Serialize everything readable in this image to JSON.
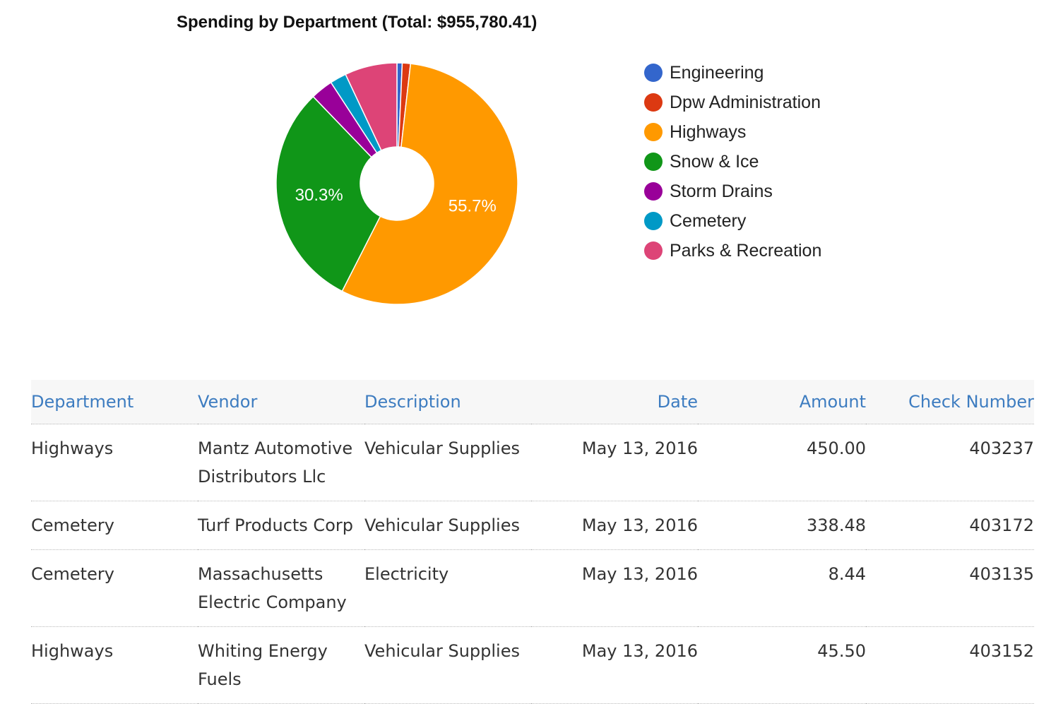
{
  "chart_data": {
    "type": "pie",
    "donut": true,
    "title": "Spending by Department (Total: $955,780.41)",
    "legend_position": "right",
    "slices": [
      {
        "label": "Engineering",
        "percent": 0.7,
        "color": "#3366cc",
        "data_label": ""
      },
      {
        "label": "Dpw Administration",
        "percent": 1.1,
        "color": "#dc3912",
        "data_label": ""
      },
      {
        "label": "Highways",
        "percent": 55.7,
        "color": "#ff9900",
        "data_label": "55.7%"
      },
      {
        "label": "Snow & Ice",
        "percent": 30.3,
        "color": "#109618",
        "data_label": "30.3%"
      },
      {
        "label": "Storm Drains",
        "percent": 3.0,
        "color": "#990099",
        "data_label": ""
      },
      {
        "label": "Cemetery",
        "percent": 2.2,
        "color": "#0099c6",
        "data_label": ""
      },
      {
        "label": "Parks & Recreation",
        "percent": 7.0,
        "color": "#dd4477",
        "data_label": ""
      }
    ]
  },
  "table": {
    "headers": {
      "department": "Department",
      "vendor": "Vendor",
      "description": "Description",
      "date": "Date",
      "amount": "Amount",
      "check": "Check Number"
    },
    "rows": [
      {
        "department": "Highways",
        "vendor": "Mantz Automotive Distributors Llc",
        "description": "Vehicular Supplies",
        "date": "May 13, 2016",
        "amount": "450.00",
        "check": "403237"
      },
      {
        "department": "Cemetery",
        "vendor": "Turf Products Corp",
        "description": "Vehicular Supplies",
        "date": "May 13, 2016",
        "amount": "338.48",
        "check": "403172"
      },
      {
        "department": "Cemetery",
        "vendor": "Massachusetts Electric Company",
        "description": "Electricity",
        "date": "May 13, 2016",
        "amount": "8.44",
        "check": "403135"
      },
      {
        "department": "Highways",
        "vendor": "Whiting Energy Fuels",
        "description": "Vehicular Supplies",
        "date": "May 13, 2016",
        "amount": "45.50",
        "check": "403152"
      }
    ]
  }
}
